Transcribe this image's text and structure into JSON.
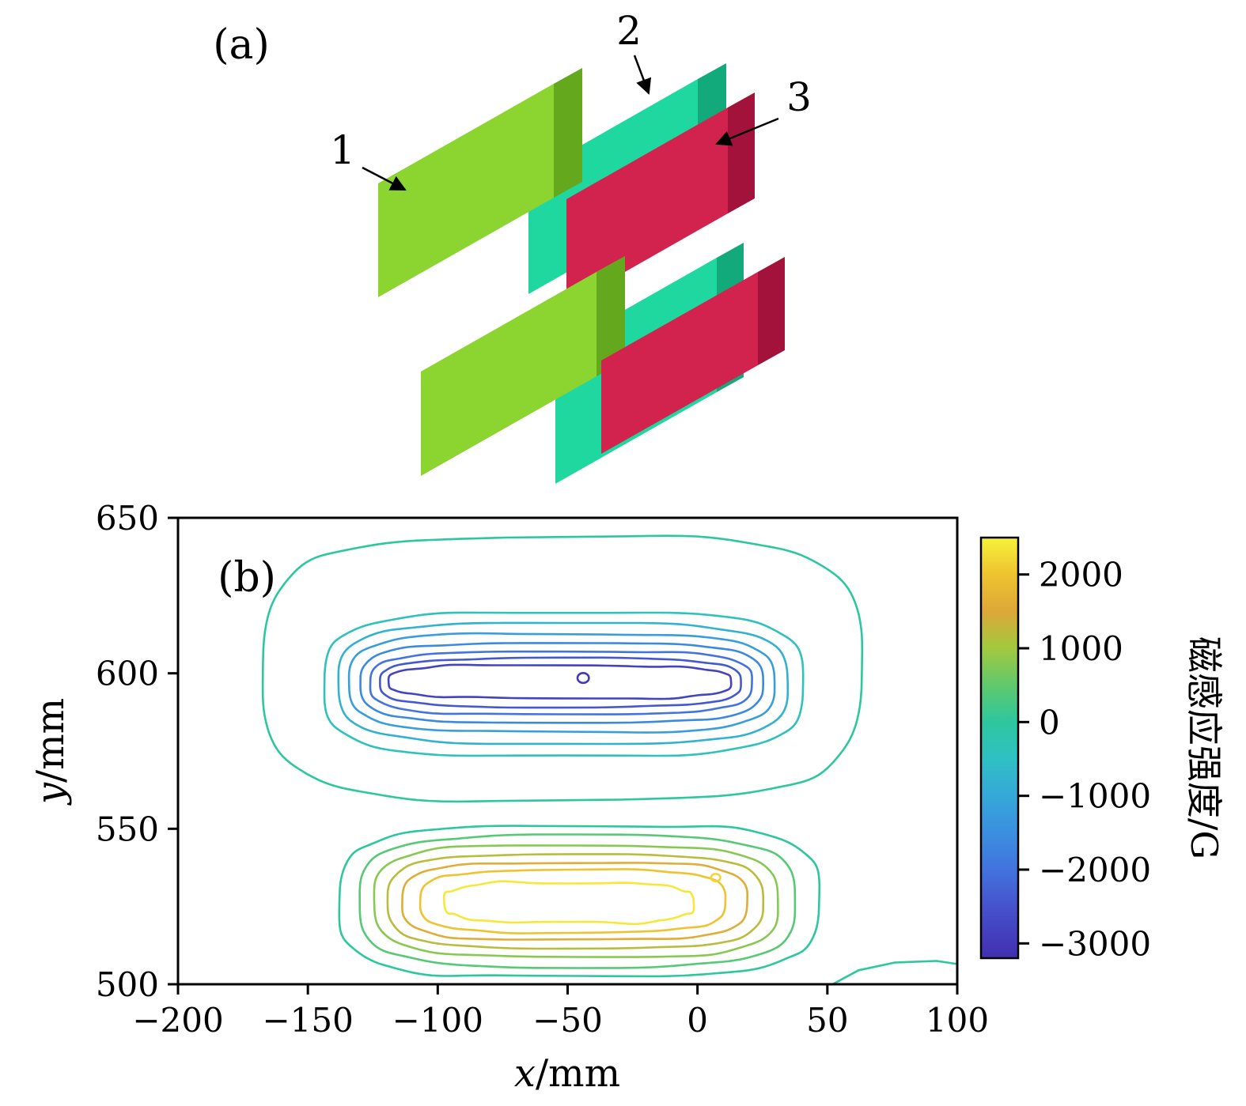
{
  "panel_a": {
    "label": "(a)",
    "blocks": [
      {
        "id": "green",
        "label": "1"
      },
      {
        "id": "teal",
        "label": "2"
      },
      {
        "id": "red",
        "label": "3"
      }
    ],
    "colors": {
      "green": {
        "front": "#8CD42F",
        "top": "#ABE557",
        "side": "#63A81D"
      },
      "teal": {
        "front": "#1FD89F",
        "top": "#52E9BE",
        "side": "#12A97B"
      },
      "red": {
        "front": "#D2234E",
        "top": "#E25674",
        "side": "#A3123B"
      }
    }
  },
  "chart_data": {
    "type": "contour",
    "panel_label": "(b)",
    "xlabel": {
      "var": "x",
      "unit": "/mm"
    },
    "ylabel": {
      "var": "y",
      "unit": "/mm"
    },
    "xlim": [
      -200,
      100
    ],
    "ylim": [
      500,
      650
    ],
    "xticks": [
      -200,
      -150,
      -100,
      -50,
      0,
      50,
      100
    ],
    "yticks": [
      500,
      550,
      600,
      650
    ],
    "grid": false,
    "colorbar": {
      "label": "磁感应强度/G",
      "ticks": [
        2000,
        1000,
        0,
        -1000,
        -2000,
        -3000
      ],
      "vmin": -3200,
      "vmax": 2500,
      "stops": [
        {
          "value": 2500,
          "color": "#F8F13B"
        },
        {
          "value": 2000,
          "color": "#EEC32F"
        },
        {
          "value": 1500,
          "color": "#DCA838"
        },
        {
          "value": 1000,
          "color": "#A2C93E"
        },
        {
          "value": 500,
          "color": "#5FC96C"
        },
        {
          "value": 0,
          "color": "#2DC79E"
        },
        {
          "value": -500,
          "color": "#2FC0C4"
        },
        {
          "value": -1000,
          "color": "#35A8D8"
        },
        {
          "value": -1500,
          "color": "#3B8FE0"
        },
        {
          "value": -2000,
          "color": "#4273DE"
        },
        {
          "value": -2500,
          "color": "#4553CC"
        },
        {
          "value": -3000,
          "color": "#4438B8"
        },
        {
          "value": -3200,
          "color": "#4130B0"
        }
      ]
    },
    "contours": {
      "negative_lobe": [
        {
          "level": 0,
          "x": [
            -167,
            63
          ],
          "y": [
            559,
            644
          ],
          "jitter": 4
        },
        {
          "level": -400,
          "x": [
            -144,
            41
          ],
          "y": [
            573.5,
            619.5
          ],
          "jitter": 2.5
        },
        {
          "level": -800,
          "x": [
            -138.5,
            35
          ],
          "y": [
            577.5,
            616
          ],
          "jitter": 2
        },
        {
          "level": -1200,
          "x": [
            -134,
            29.5
          ],
          "y": [
            581,
            612.8
          ],
          "jitter": 1.8
        },
        {
          "level": -1600,
          "x": [
            -129.5,
            25
          ],
          "y": [
            584,
            609.8
          ],
          "jitter": 1.6
        },
        {
          "level": -2000,
          "x": [
            -126,
            21
          ],
          "y": [
            586.8,
            607
          ],
          "jitter": 1.5
        },
        {
          "level": -2400,
          "x": [
            -122.5,
            17
          ],
          "y": [
            589.3,
            604.7
          ],
          "jitter": 1.5
        },
        {
          "level": -2800,
          "x": [
            -119,
            13
          ],
          "y": [
            592,
            602.5
          ],
          "jitter": 2
        }
      ],
      "positive_lobe": [
        {
          "level": 0,
          "x": [
            -138,
            47
          ],
          "y": [
            502.5,
            551
          ],
          "jitter": 3.5
        },
        {
          "level": 400,
          "x": [
            -130.5,
            38
          ],
          "y": [
            505.8,
            547.6
          ],
          "jitter": 2.5
        },
        {
          "level": 800,
          "x": [
            -124.5,
            31
          ],
          "y": [
            508.8,
            544.6
          ],
          "jitter": 2
        },
        {
          "level": 1200,
          "x": [
            -119,
            25
          ],
          "y": [
            511.5,
            541.8
          ],
          "jitter": 1.8
        },
        {
          "level": 1600,
          "x": [
            -113.5,
            19
          ],
          "y": [
            514.2,
            539.2
          ],
          "jitter": 1.8
        },
        {
          "level": 2000,
          "x": [
            -107,
            11
          ],
          "y": [
            516.8,
            536.6
          ],
          "jitter": 2
        },
        {
          "level": 2400,
          "x": [
            -98,
            -1
          ],
          "y": [
            520,
            532.5
          ],
          "jitter": 3.5
        }
      ],
      "spots": [
        {
          "cx": -44,
          "cy": 598.5,
          "rx": 2.2,
          "ry": 1.6,
          "level": -3000
        },
        {
          "cx": 7,
          "cy": 534.3,
          "rx": 1.8,
          "ry": 1.2,
          "level": 2200
        }
      ],
      "open_paths": [
        {
          "level": 0,
          "points": [
            [
              52,
              500
            ],
            [
              62,
              504.5
            ],
            [
              76,
              507
            ],
            [
              92,
              507.5
            ],
            [
              100,
              506.5
            ]
          ]
        }
      ]
    }
  }
}
